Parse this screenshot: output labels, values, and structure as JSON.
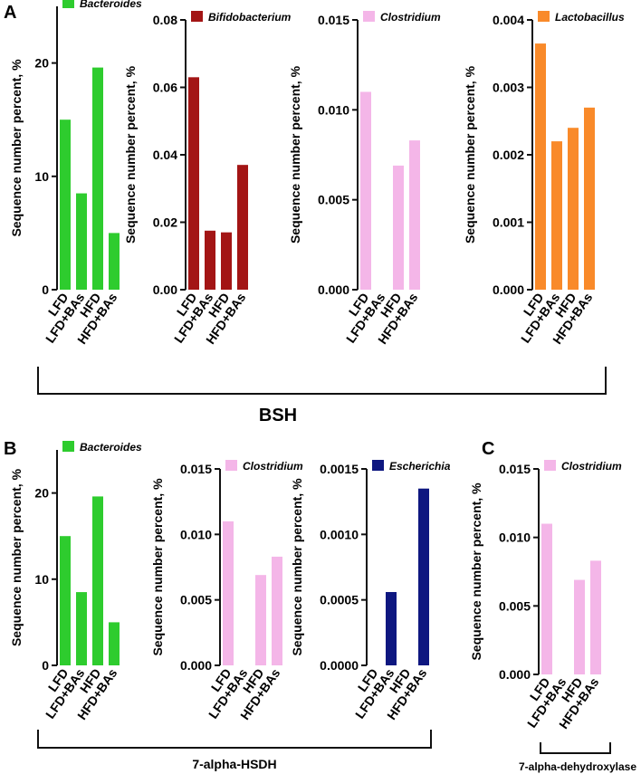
{
  "figure": {
    "panel_labels": [
      "A",
      "B",
      "C"
    ],
    "group_labels": {
      "A": "BSH",
      "B": "7-alpha-HSDH",
      "C": "7-alpha-dehydroxylase"
    },
    "y_axis_title": "Sequence number percent, %"
  },
  "chart_data": [
    {
      "id": "A1",
      "panel": "A",
      "type": "bar",
      "legend": "Bacteroides",
      "color": "#2ecc2e",
      "categories": [
        "LFD",
        "LFD+BAs",
        "HFD",
        "HFD+BAs"
      ],
      "values": [
        15.0,
        8.5,
        19.6,
        5.0
      ],
      "ylim": [
        0,
        25
      ],
      "ticks": [
        "0",
        "10",
        "20"
      ],
      "tick_values": [
        0,
        10,
        20
      ],
      "ylabel": "Sequence number percent, %"
    },
    {
      "id": "A2",
      "panel": "A",
      "type": "bar",
      "legend": "Bifidobacterium",
      "color": "#a31515",
      "categories": [
        "LFD",
        "LFD+BAs",
        "HFD",
        "HFD+BAs"
      ],
      "values": [
        0.063,
        0.0175,
        0.017,
        0.037
      ],
      "ylim": [
        0,
        0.08
      ],
      "ticks": [
        "0.00",
        "0.02",
        "0.04",
        "0.06",
        "0.08"
      ],
      "tick_values": [
        0,
        0.02,
        0.04,
        0.06,
        0.08
      ],
      "ylabel": "Sequence number percent, %"
    },
    {
      "id": "A3",
      "panel": "A",
      "type": "bar",
      "legend": "Clostridium",
      "color": "#f4b6e8",
      "categories": [
        "LFD",
        "LFD+BAs",
        "HFD",
        "HFD+BAs"
      ],
      "values": [
        0.011,
        0,
        0.0069,
        0.0083
      ],
      "ylim": [
        0,
        0.015
      ],
      "ticks": [
        "0.000",
        "0.005",
        "0.010",
        "0.015"
      ],
      "tick_values": [
        0,
        0.005,
        0.01,
        0.015
      ],
      "ylabel": "Sequence number percent, %"
    },
    {
      "id": "A4",
      "panel": "A",
      "type": "bar",
      "legend": "Lactobacillus",
      "color": "#f98a2a",
      "categories": [
        "LFD",
        "LFD+BAs",
        "HFD",
        "HFD+BAs"
      ],
      "values": [
        0.00365,
        0.0022,
        0.0024,
        0.0027
      ],
      "ylim": [
        0,
        0.004
      ],
      "ticks": [
        "0.000",
        "0.001",
        "0.002",
        "0.003",
        "0.004"
      ],
      "tick_values": [
        0,
        0.001,
        0.002,
        0.003,
        0.004
      ],
      "ylabel": "Sequence number percent, %"
    },
    {
      "id": "B1",
      "panel": "B",
      "type": "bar",
      "legend": "Bacteroides",
      "color": "#2ecc2e",
      "categories": [
        "LFD",
        "LFD+BAs",
        "HFD",
        "HFD+BAs"
      ],
      "values": [
        15.0,
        8.5,
        19.6,
        5.0
      ],
      "ylim": [
        0,
        25
      ],
      "ticks": [
        "0",
        "10",
        "20"
      ],
      "tick_values": [
        0,
        10,
        20
      ],
      "ylabel": "Sequence number percent, %"
    },
    {
      "id": "B2",
      "panel": "B",
      "type": "bar",
      "legend": "Clostridium",
      "color": "#f4b6e8",
      "categories": [
        "LFD",
        "LFD+BAs",
        "HFD",
        "HFD+BAs"
      ],
      "values": [
        0.011,
        0,
        0.0069,
        0.0083
      ],
      "ylim": [
        0,
        0.015
      ],
      "ticks": [
        "0.000",
        "0.005",
        "0.010",
        "0.015"
      ],
      "tick_values": [
        0,
        0.005,
        0.01,
        0.015
      ],
      "ylabel": "Sequence number percent, %"
    },
    {
      "id": "B3",
      "panel": "B",
      "type": "bar",
      "legend": "Escherichia",
      "color": "#0e1780",
      "categories": [
        "LFD",
        "LFD+BAs",
        "HFD",
        "HFD+BAs"
      ],
      "values": [
        0,
        0.00056,
        0,
        0.00135
      ],
      "ylim": [
        0,
        0.0015
      ],
      "ticks": [
        "0.0000",
        "0.0005",
        "0.0010",
        "0.0015"
      ],
      "tick_values": [
        0,
        0.0005,
        0.001,
        0.0015
      ],
      "ylabel": "Sequence number percent, %"
    },
    {
      "id": "C1",
      "panel": "C",
      "type": "bar",
      "legend": "Clostridium",
      "color": "#f4b6e8",
      "categories": [
        "LFD",
        "LFD+BAs",
        "HFD",
        "HFD+BAs"
      ],
      "values": [
        0.011,
        0,
        0.0069,
        0.0083
      ],
      "ylim": [
        0,
        0.015
      ],
      "ticks": [
        "0.000",
        "0.005",
        "0.010",
        "0.015"
      ],
      "tick_values": [
        0,
        0.005,
        0.01,
        0.015
      ],
      "ylabel": "Sequence number percent, %"
    }
  ]
}
